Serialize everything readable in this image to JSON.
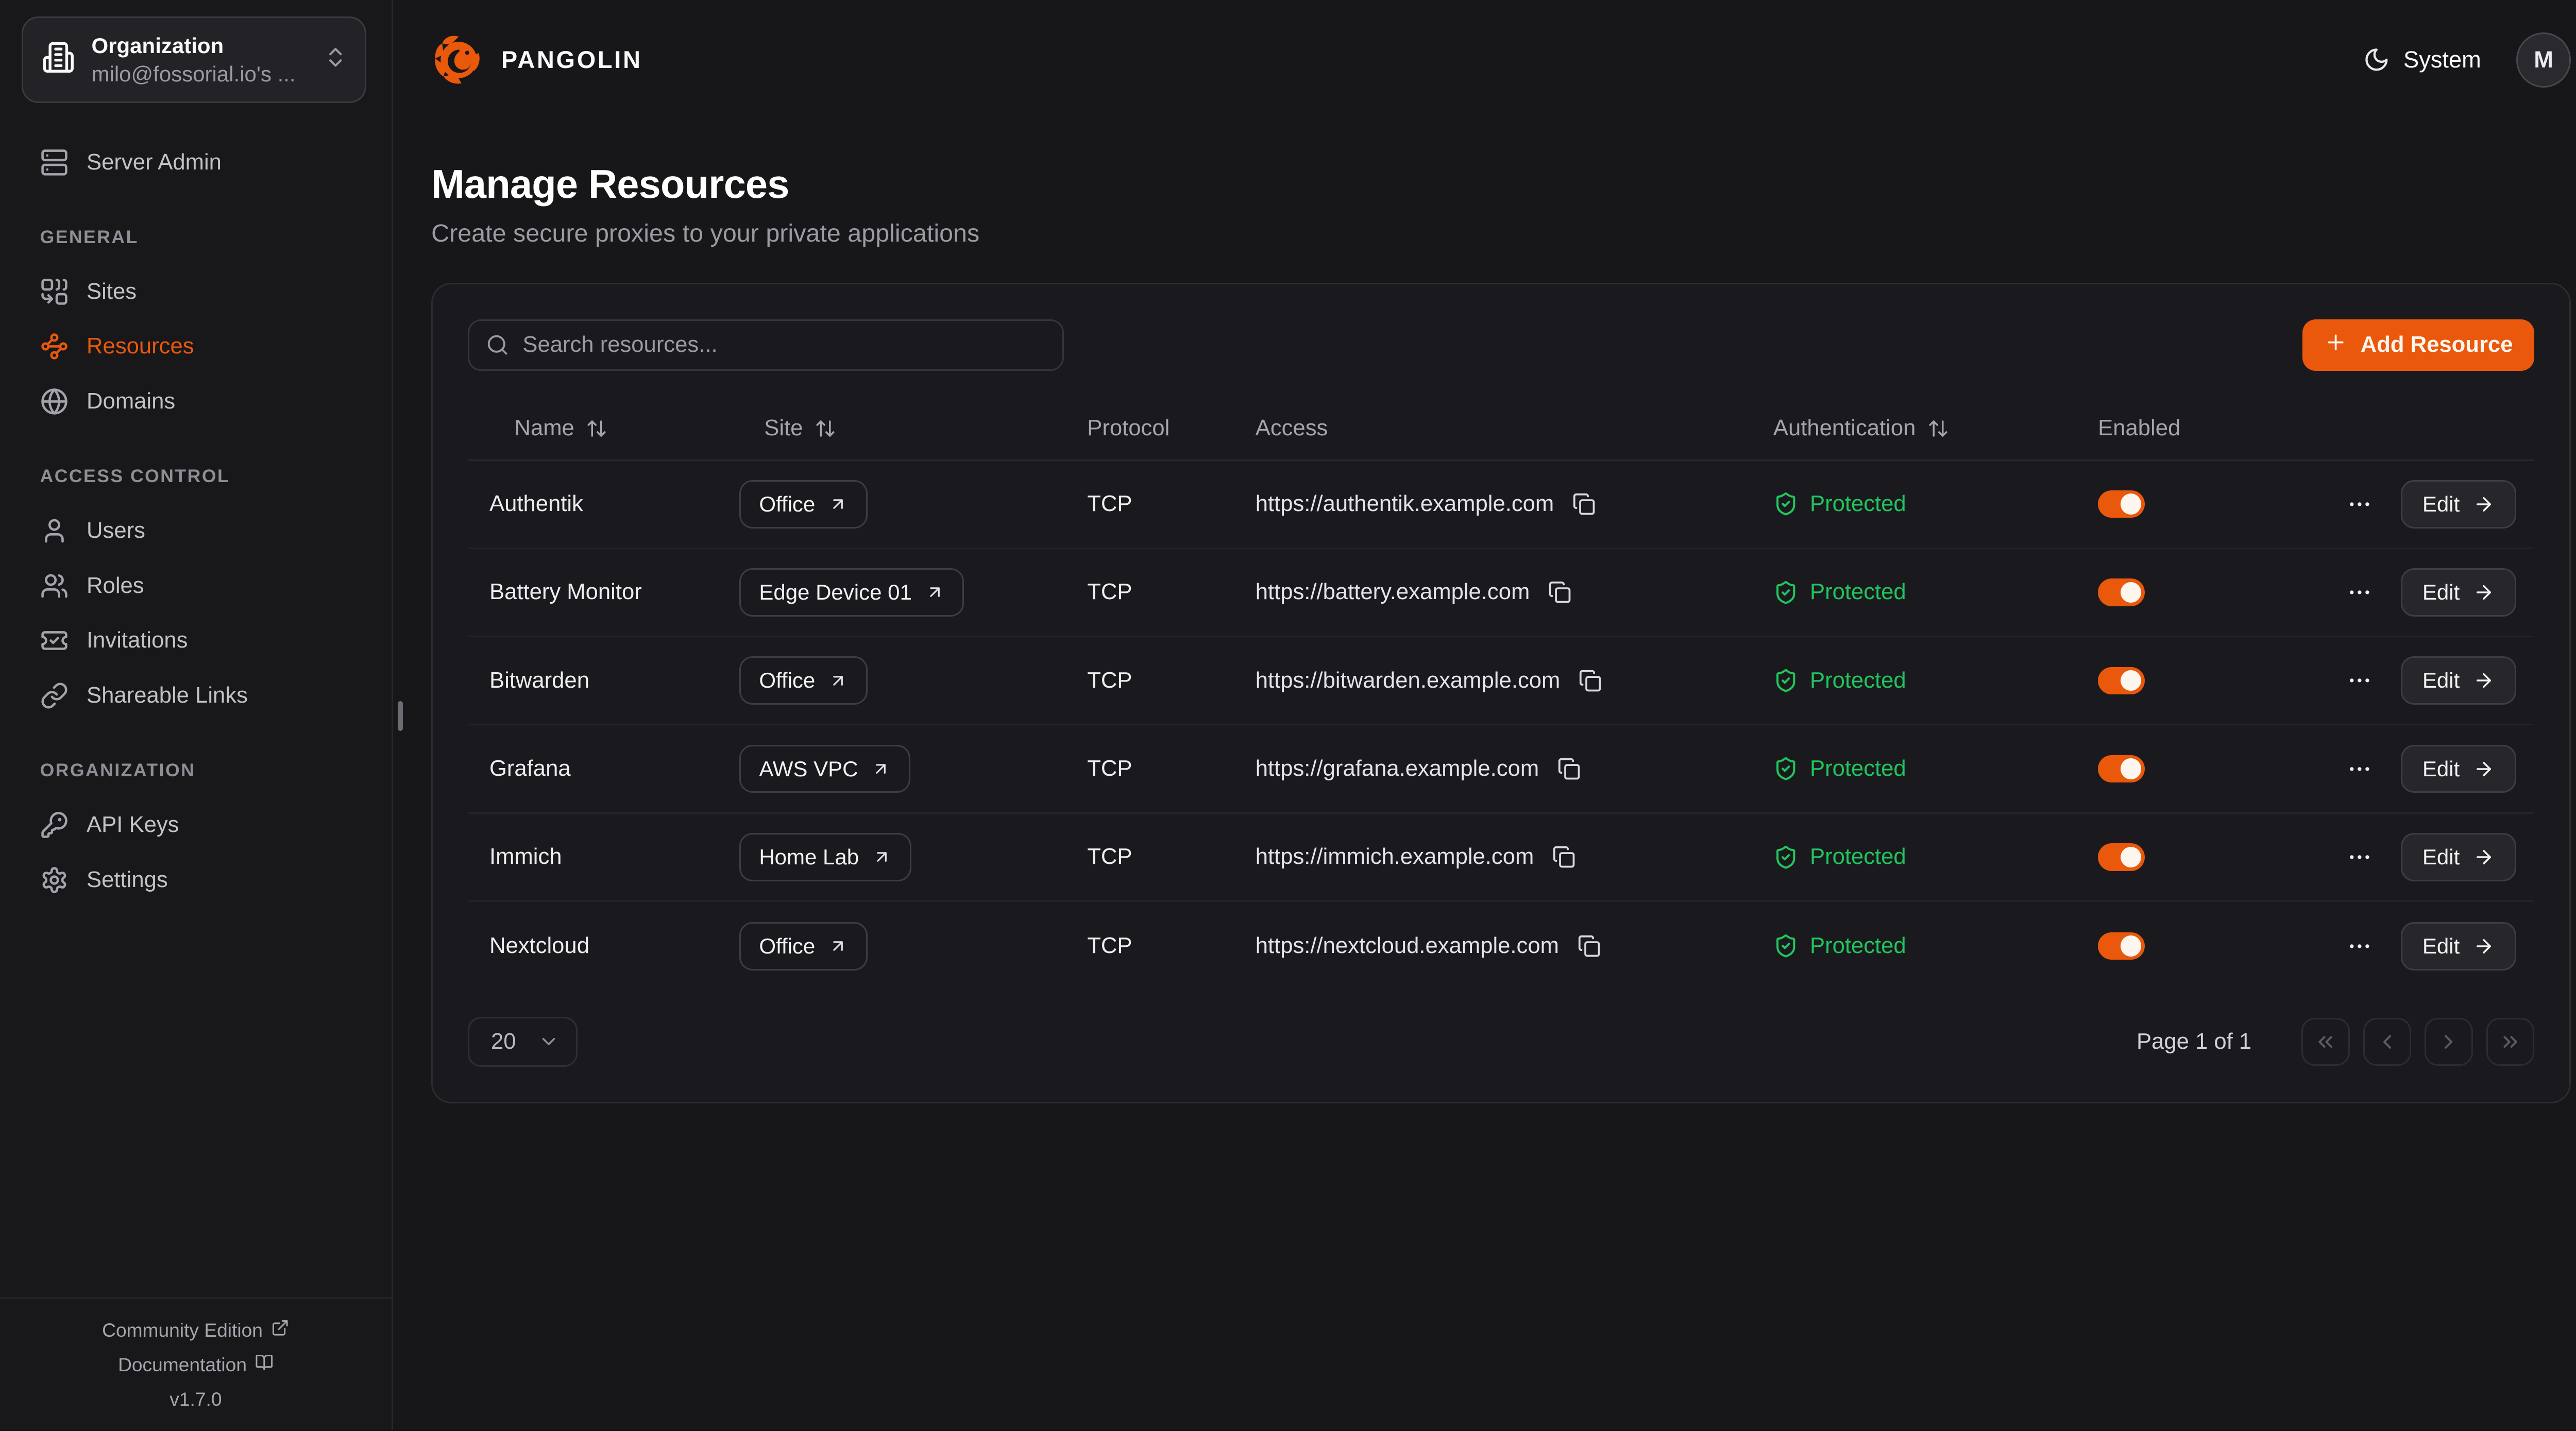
{
  "colors": {
    "accent": "#ea580c",
    "protected_green": "#22c55e"
  },
  "sidebar": {
    "org_switcher": {
      "icon": "building-icon",
      "label": "Organization",
      "value": "milo@fossorial.io's ...",
      "chevron": "chevrons-up-down-icon"
    },
    "sections": [
      {
        "heading": null,
        "items": [
          {
            "label": "Server Admin",
            "icon": "server-icon",
            "active": false
          }
        ]
      },
      {
        "heading": "GENERAL",
        "items": [
          {
            "label": "Sites",
            "icon": "sites-icon",
            "active": false
          },
          {
            "label": "Resources",
            "icon": "resources-icon",
            "active": true
          },
          {
            "label": "Domains",
            "icon": "globe-icon",
            "active": false
          }
        ]
      },
      {
        "heading": "ACCESS CONTROL",
        "items": [
          {
            "label": "Users",
            "icon": "user-icon",
            "active": false
          },
          {
            "label": "Roles",
            "icon": "users-icon",
            "active": false
          },
          {
            "label": "Invitations",
            "icon": "ticket-check-icon",
            "active": false
          },
          {
            "label": "Shareable Links",
            "icon": "link-icon",
            "active": false
          }
        ]
      },
      {
        "heading": "ORGANIZATION",
        "items": [
          {
            "label": "API Keys",
            "icon": "key-icon",
            "active": false
          },
          {
            "label": "Settings",
            "icon": "gear-icon",
            "active": false
          }
        ]
      }
    ],
    "footer": {
      "community_label": "Community Edition",
      "community_icon": "external-link-icon",
      "docs_label": "Documentation",
      "docs_icon": "book-open-icon",
      "version": "v1.7.0"
    }
  },
  "header": {
    "brand": "PANGOLIN",
    "theme_label": "System",
    "theme_icon": "moon-icon",
    "avatar_initial": "M"
  },
  "page": {
    "title": "Manage Resources",
    "subtitle": "Create secure proxies to your private applications"
  },
  "toolbar": {
    "search_placeholder": "Search resources...",
    "search_icon": "search-icon",
    "add_button": "Add Resource",
    "add_icon": "plus-icon"
  },
  "table": {
    "columns": [
      {
        "label": "Name",
        "sortable": true
      },
      {
        "label": "Site",
        "sortable": true
      },
      {
        "label": "Protocol",
        "sortable": false
      },
      {
        "label": "Access",
        "sortable": false
      },
      {
        "label": "Authentication",
        "sortable": true
      },
      {
        "label": "Enabled",
        "sortable": false
      }
    ],
    "sort_icon": "arrow-up-down-icon",
    "site_link_icon": "arrow-up-right-icon",
    "copy_icon": "copy-icon",
    "protected_icon": "shield-check-icon",
    "row_menu_icon": "ellipsis-icon",
    "edit_label": "Edit",
    "edit_icon": "arrow-right-icon",
    "rows": [
      {
        "name": "Authentik",
        "site": "Office",
        "protocol": "TCP",
        "access": "https://authentik.example.com",
        "auth": "Protected",
        "enabled": true
      },
      {
        "name": "Battery Monitor",
        "site": "Edge Device 01",
        "protocol": "TCP",
        "access": "https://battery.example.com",
        "auth": "Protected",
        "enabled": true
      },
      {
        "name": "Bitwarden",
        "site": "Office",
        "protocol": "TCP",
        "access": "https://bitwarden.example.com",
        "auth": "Protected",
        "enabled": true
      },
      {
        "name": "Grafana",
        "site": "AWS VPC",
        "protocol": "TCP",
        "access": "https://grafana.example.com",
        "auth": "Protected",
        "enabled": true
      },
      {
        "name": "Immich",
        "site": "Home Lab",
        "protocol": "TCP",
        "access": "https://immich.example.com",
        "auth": "Protected",
        "enabled": true
      },
      {
        "name": "Nextcloud",
        "site": "Office",
        "protocol": "TCP",
        "access": "https://nextcloud.example.com",
        "auth": "Protected",
        "enabled": true
      }
    ]
  },
  "pagination": {
    "page_size": "20",
    "page_size_icon": "chevron-down-icon",
    "status": "Page 1 of 1",
    "buttons": [
      {
        "name": "first-page-button",
        "icon": "chevrons-left-icon"
      },
      {
        "name": "prev-page-button",
        "icon": "chevron-left-icon"
      },
      {
        "name": "next-page-button",
        "icon": "chevron-right-icon"
      },
      {
        "name": "last-page-button",
        "icon": "chevrons-right-icon"
      }
    ]
  }
}
